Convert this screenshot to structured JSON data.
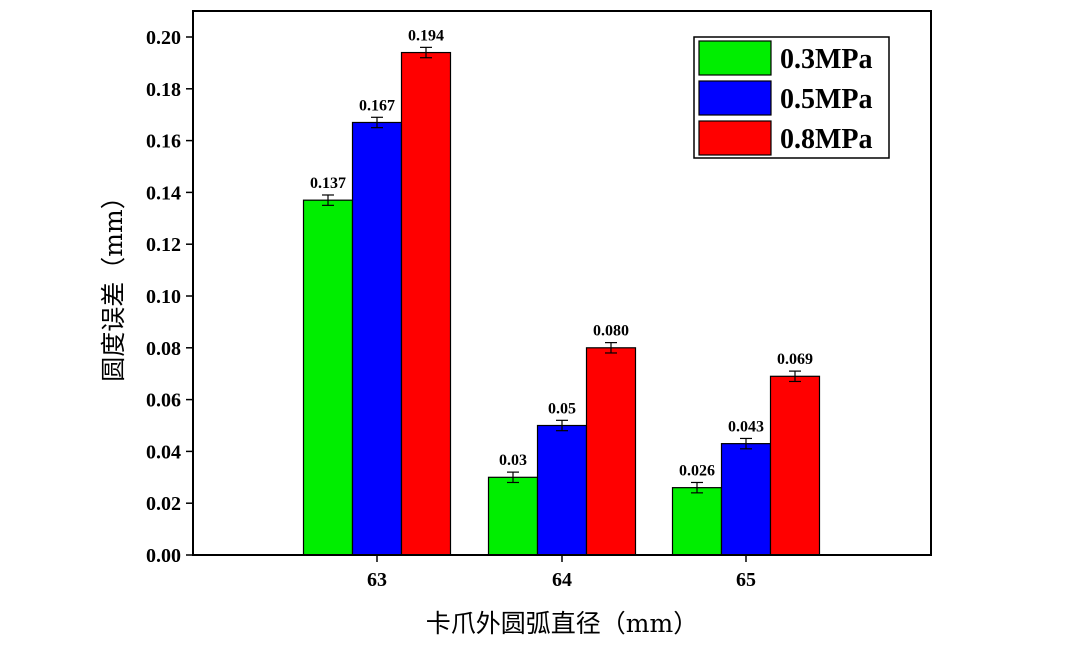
{
  "chart_data": {
    "type": "bar",
    "categories": [
      "63",
      "64",
      "65"
    ],
    "series": [
      {
        "name": "0.3MPa",
        "color": "#00ee00",
        "values": [
          0.137,
          0.03,
          0.026
        ],
        "labels": [
          "0.137",
          "0.03",
          "0.026"
        ],
        "errors": [
          0.002,
          0.002,
          0.002
        ]
      },
      {
        "name": "0.5MPa",
        "color": "#0000ff",
        "values": [
          0.167,
          0.05,
          0.043
        ],
        "labels": [
          "0.167",
          "0.05",
          "0.043"
        ],
        "errors": [
          0.002,
          0.002,
          0.002
        ]
      },
      {
        "name": "0.8MPa",
        "color": "#ff0000",
        "values": [
          0.194,
          0.08,
          0.069
        ],
        "labels": [
          "0.194",
          "0.080",
          "0.069"
        ],
        "errors": [
          0.002,
          0.002,
          0.002
        ]
      }
    ],
    "xlabel": "卡爪外圆弧直径（mm）",
    "ylabel": "圆度误差（mm）",
    "ylim": [
      0,
      0.21
    ],
    "yticks": [
      "0.00",
      "0.02",
      "0.04",
      "0.06",
      "0.08",
      "0.10",
      "0.12",
      "0.14",
      "0.16",
      "0.18",
      "0.20"
    ],
    "legend_position": "top-right",
    "grid": false
  }
}
